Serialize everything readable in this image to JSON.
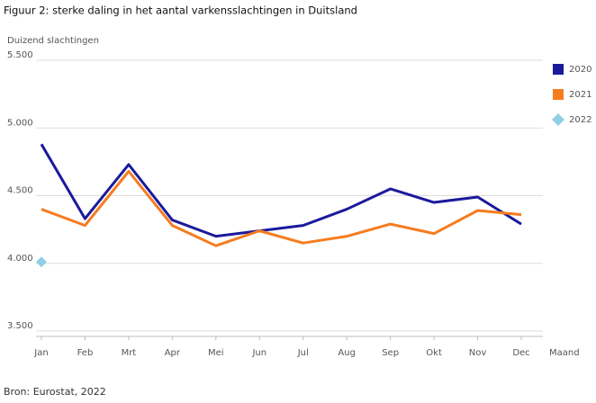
{
  "chart_data": {
    "type": "line",
    "title": "Figuur 2: sterke daling in het aantal varkensslachtingen in Duitsland",
    "y_label": "Duizend slachtingen",
    "x_label": "Maand",
    "source": "Bron: Eurostat, 2022",
    "categories": [
      "Jan",
      "Feb",
      "Mrt",
      "Apr",
      "Mei",
      "Jun",
      "Jul",
      "Aug",
      "Sep",
      "Okt",
      "Nov",
      "Dec"
    ],
    "series": [
      {
        "name": "2020",
        "color": "#1a1a9c",
        "marker": "square",
        "values": [
          4880,
          4330,
          4730,
          4320,
          4200,
          4240,
          4280,
          4400,
          4550,
          4450,
          4490,
          4290
        ]
      },
      {
        "name": "2021",
        "color": "#f57c1f",
        "marker": "square",
        "values": [
          4400,
          4280,
          4680,
          4280,
          4130,
          4240,
          4150,
          4200,
          4290,
          4220,
          4390,
          4360
        ]
      },
      {
        "name": "2022",
        "color": "#8fd0e6",
        "marker": "diamond",
        "values": [
          4010,
          null,
          null,
          null,
          null,
          null,
          null,
          null,
          null,
          null,
          null,
          null
        ]
      }
    ],
    "ylim": [
      3500,
      5500
    ],
    "yticks": [
      {
        "value": 3500,
        "label": "3.500"
      },
      {
        "value": 4000,
        "label": "4.000"
      },
      {
        "value": 4500,
        "label": "4.500"
      },
      {
        "value": 5000,
        "label": "5.000"
      },
      {
        "value": 5500,
        "label": "5.500"
      }
    ],
    "grid": true,
    "legend": "right"
  }
}
